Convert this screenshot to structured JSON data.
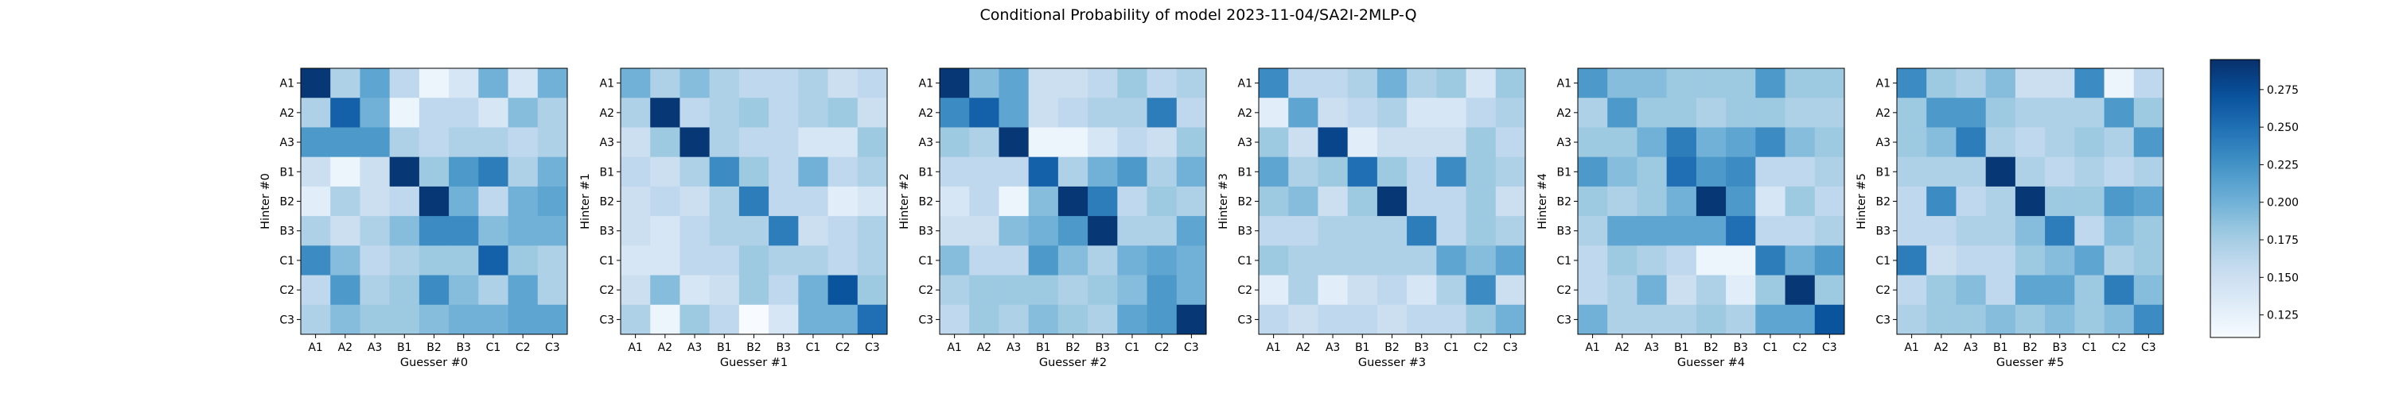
{
  "chart_data": {
    "type": "heatmap",
    "title": "Conditional Probability of model 2023-11-04/SA2I-2MLP-Q",
    "tick_labels": [
      "A1",
      "A2",
      "A3",
      "B1",
      "B2",
      "B3",
      "C1",
      "C2",
      "C3"
    ],
    "colormap": "Blues",
    "colorbar": {
      "vmin": 0.11,
      "vmax": 0.295,
      "ticks": [
        "0.125",
        "0.150",
        "0.175",
        "0.200",
        "0.225",
        "0.250",
        "0.275"
      ]
    },
    "panels": [
      {
        "xlabel": "Guesser #0",
        "ylabel": "Hinter #0",
        "values": [
          [
            0.29,
            0.17,
            0.21,
            0.16,
            0.12,
            0.14,
            0.2,
            0.14,
            0.2
          ],
          [
            0.17,
            0.26,
            0.2,
            0.12,
            0.16,
            0.16,
            0.14,
            0.19,
            0.17
          ],
          [
            0.22,
            0.22,
            0.22,
            0.17,
            0.16,
            0.17,
            0.17,
            0.16,
            0.17
          ],
          [
            0.15,
            0.12,
            0.15,
            0.29,
            0.18,
            0.22,
            0.24,
            0.17,
            0.2
          ],
          [
            0.13,
            0.17,
            0.15,
            0.16,
            0.29,
            0.2,
            0.16,
            0.2,
            0.21
          ],
          [
            0.17,
            0.15,
            0.17,
            0.19,
            0.23,
            0.23,
            0.19,
            0.2,
            0.2
          ],
          [
            0.23,
            0.19,
            0.16,
            0.17,
            0.18,
            0.18,
            0.26,
            0.18,
            0.17
          ],
          [
            0.16,
            0.22,
            0.17,
            0.18,
            0.23,
            0.19,
            0.17,
            0.21,
            0.17
          ],
          [
            0.17,
            0.19,
            0.18,
            0.18,
            0.19,
            0.2,
            0.2,
            0.21,
            0.21
          ]
        ]
      },
      {
        "xlabel": "Guesser #1",
        "ylabel": "Hinter #1",
        "values": [
          [
            0.2,
            0.17,
            0.19,
            0.17,
            0.16,
            0.16,
            0.17,
            0.15,
            0.16
          ],
          [
            0.17,
            0.29,
            0.16,
            0.17,
            0.18,
            0.16,
            0.17,
            0.18,
            0.15
          ],
          [
            0.15,
            0.18,
            0.29,
            0.17,
            0.16,
            0.16,
            0.14,
            0.14,
            0.18
          ],
          [
            0.16,
            0.15,
            0.17,
            0.23,
            0.18,
            0.16,
            0.2,
            0.16,
            0.17
          ],
          [
            0.15,
            0.16,
            0.15,
            0.17,
            0.24,
            0.16,
            0.16,
            0.13,
            0.14
          ],
          [
            0.15,
            0.14,
            0.16,
            0.17,
            0.17,
            0.24,
            0.15,
            0.16,
            0.17
          ],
          [
            0.14,
            0.14,
            0.16,
            0.16,
            0.18,
            0.17,
            0.17,
            0.16,
            0.17
          ],
          [
            0.15,
            0.19,
            0.14,
            0.15,
            0.18,
            0.16,
            0.2,
            0.27,
            0.18
          ],
          [
            0.17,
            0.12,
            0.18,
            0.16,
            0.11,
            0.14,
            0.2,
            0.2,
            0.25
          ]
        ]
      },
      {
        "xlabel": "Guesser #2",
        "ylabel": "Hinter #2",
        "values": [
          [
            0.29,
            0.19,
            0.21,
            0.15,
            0.15,
            0.16,
            0.18,
            0.16,
            0.17
          ],
          [
            0.23,
            0.26,
            0.21,
            0.15,
            0.16,
            0.17,
            0.17,
            0.24,
            0.16
          ],
          [
            0.18,
            0.17,
            0.29,
            0.12,
            0.12,
            0.14,
            0.16,
            0.15,
            0.18
          ],
          [
            0.16,
            0.16,
            0.16,
            0.26,
            0.17,
            0.2,
            0.22,
            0.17,
            0.2
          ],
          [
            0.14,
            0.16,
            0.12,
            0.19,
            0.29,
            0.24,
            0.16,
            0.18,
            0.17
          ],
          [
            0.15,
            0.15,
            0.19,
            0.2,
            0.22,
            0.29,
            0.17,
            0.17,
            0.21
          ],
          [
            0.19,
            0.16,
            0.16,
            0.22,
            0.19,
            0.17,
            0.2,
            0.21,
            0.2
          ],
          [
            0.17,
            0.18,
            0.18,
            0.18,
            0.17,
            0.18,
            0.19,
            0.22,
            0.2
          ],
          [
            0.16,
            0.18,
            0.17,
            0.19,
            0.18,
            0.17,
            0.21,
            0.22,
            0.29
          ]
        ]
      },
      {
        "xlabel": "Guesser #3",
        "ylabel": "Hinter #3",
        "values": [
          [
            0.23,
            0.16,
            0.16,
            0.17,
            0.2,
            0.17,
            0.18,
            0.14,
            0.18
          ],
          [
            0.13,
            0.21,
            0.15,
            0.16,
            0.17,
            0.14,
            0.14,
            0.16,
            0.17
          ],
          [
            0.18,
            0.15,
            0.28,
            0.13,
            0.15,
            0.15,
            0.15,
            0.18,
            0.16
          ],
          [
            0.21,
            0.17,
            0.18,
            0.25,
            0.18,
            0.16,
            0.23,
            0.18,
            0.17
          ],
          [
            0.18,
            0.19,
            0.15,
            0.18,
            0.29,
            0.16,
            0.16,
            0.18,
            0.15
          ],
          [
            0.16,
            0.16,
            0.17,
            0.17,
            0.17,
            0.24,
            0.16,
            0.18,
            0.17
          ],
          [
            0.18,
            0.17,
            0.17,
            0.17,
            0.17,
            0.17,
            0.21,
            0.19,
            0.21
          ],
          [
            0.13,
            0.17,
            0.13,
            0.15,
            0.16,
            0.14,
            0.17,
            0.23,
            0.15
          ],
          [
            0.16,
            0.15,
            0.16,
            0.16,
            0.15,
            0.16,
            0.16,
            0.18,
            0.2
          ]
        ]
      },
      {
        "xlabel": "Guesser #4",
        "ylabel": "Hinter #4",
        "values": [
          [
            0.22,
            0.19,
            0.19,
            0.18,
            0.18,
            0.18,
            0.22,
            0.18,
            0.18
          ],
          [
            0.17,
            0.22,
            0.18,
            0.18,
            0.17,
            0.18,
            0.18,
            0.17,
            0.17
          ],
          [
            0.18,
            0.18,
            0.2,
            0.24,
            0.2,
            0.21,
            0.23,
            0.19,
            0.18
          ],
          [
            0.22,
            0.19,
            0.18,
            0.25,
            0.22,
            0.23,
            0.16,
            0.16,
            0.17
          ],
          [
            0.18,
            0.17,
            0.18,
            0.2,
            0.29,
            0.22,
            0.14,
            0.18,
            0.16
          ],
          [
            0.17,
            0.21,
            0.21,
            0.21,
            0.21,
            0.25,
            0.16,
            0.16,
            0.17
          ],
          [
            0.16,
            0.18,
            0.17,
            0.16,
            0.12,
            0.12,
            0.24,
            0.2,
            0.22
          ],
          [
            0.16,
            0.17,
            0.2,
            0.15,
            0.17,
            0.13,
            0.18,
            0.29,
            0.18
          ],
          [
            0.2,
            0.17,
            0.17,
            0.17,
            0.18,
            0.17,
            0.21,
            0.21,
            0.27
          ]
        ]
      },
      {
        "xlabel": "Guesser #5",
        "ylabel": "Hinter #5",
        "values": [
          [
            0.23,
            0.18,
            0.17,
            0.19,
            0.15,
            0.15,
            0.23,
            0.12,
            0.16
          ],
          [
            0.18,
            0.22,
            0.22,
            0.18,
            0.17,
            0.17,
            0.17,
            0.22,
            0.18
          ],
          [
            0.18,
            0.19,
            0.24,
            0.17,
            0.16,
            0.17,
            0.18,
            0.17,
            0.22
          ],
          [
            0.17,
            0.17,
            0.17,
            0.29,
            0.17,
            0.16,
            0.17,
            0.16,
            0.17
          ],
          [
            0.16,
            0.23,
            0.16,
            0.17,
            0.29,
            0.18,
            0.18,
            0.22,
            0.21
          ],
          [
            0.16,
            0.16,
            0.17,
            0.17,
            0.19,
            0.24,
            0.16,
            0.19,
            0.18
          ],
          [
            0.24,
            0.15,
            0.16,
            0.16,
            0.18,
            0.19,
            0.21,
            0.17,
            0.18
          ],
          [
            0.16,
            0.18,
            0.19,
            0.16,
            0.21,
            0.21,
            0.18,
            0.24,
            0.19
          ],
          [
            0.17,
            0.18,
            0.18,
            0.19,
            0.18,
            0.19,
            0.18,
            0.19,
            0.23
          ]
        ]
      }
    ]
  }
}
